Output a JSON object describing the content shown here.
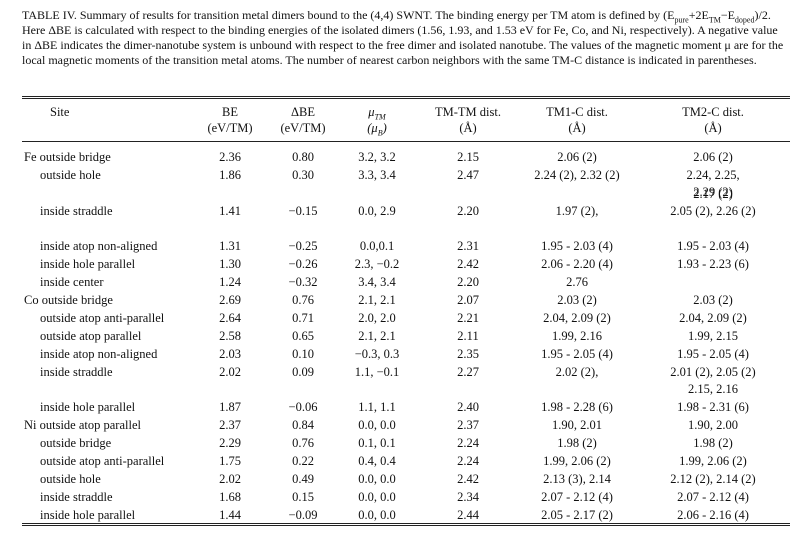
{
  "caption": {
    "lead": "TABLE IV. Summary of results for transition metal dimers bound to the (4,4) SWNT. The binding energy per TM atom is defined by (E",
    "sub_pure": "pure",
    "mid1": "+2E",
    "sub_tm": "TM",
    "mid2": "−E",
    "sub_doped": "doped",
    "tail": ")/2. Here ΔBE is calculated with respect to the binding energies of the isolated dimers (1.56, 1.93, and 1.53 eV for Fe, Co, and Ni, respectively). A negative value in ΔBE indicates the dimer-nanotube system is unbound with respect to the free dimer and isolated nanotube. The values of the magnetic moment μ are for the local magnetic moments of the transition metal atoms. The number of nearest carbon neighbors with the same TM-C distance is indicated in parentheses."
  },
  "headers": {
    "site": "Site",
    "be": "BE",
    "be_unit": "(eV/TM)",
    "dbe": "ΔBE",
    "dbe_unit": "(eV/TM)",
    "mu": "μ",
    "mu_sub": "TM",
    "mu_unit_open": "(μ",
    "mu_unit_sub": "B",
    "mu_unit_close": ")",
    "tmtm": "TM-TM dist.",
    "tmtm_unit": "(Å)",
    "tm1": "TM1-C dist.",
    "tm1_unit": "(Å)",
    "tm2": "TM2-C dist.",
    "tm2_unit": "(Å)"
  },
  "rows": [
    {
      "site": "Fe outside bridge",
      "indent": false,
      "be": "2.36",
      "dbe": "0.80",
      "mu": "3.2, 3.2",
      "tmtm": "2.15",
      "tm1": [
        "2.06 (2)"
      ],
      "tm2": [
        "2.06 (2)"
      ]
    },
    {
      "site": "outside hole",
      "indent": true,
      "be": "1.86",
      "dbe": "0.30",
      "mu": "3.3, 3.4",
      "tmtm": "2.47",
      "tm1": [
        "2.24 (2), 2.32 (2)"
      ],
      "tm2": [
        "2.24, 2.25,",
        "2.29 (2)"
      ]
    },
    {
      "site": "inside straddle",
      "indent": true,
      "be": "1.41",
      "dbe": "−0.15",
      "mu": "0.0, 2.9",
      "tmtm": "2.20",
      "tm1": [
        "1.97 (2),"
      ],
      "tm2": [
        "2.17 (2)",
        "2.05 (2), 2.26 (2)"
      ]
    },
    {
      "site": "inside atop non-aligned",
      "indent": true,
      "be": "1.31",
      "dbe": "−0.25",
      "mu": "0.0,0.1",
      "tmtm": "2.31",
      "tm1": [
        "1.95 - 2.03 (4)"
      ],
      "tm2": [
        "1.95 - 2.03 (4)"
      ]
    },
    {
      "site": "inside hole parallel",
      "indent": true,
      "be": "1.30",
      "dbe": "−0.26",
      "mu": "2.3, −0.2",
      "tmtm": "2.42",
      "tm1": [
        "2.06 - 2.20 (4)"
      ],
      "tm2": [
        "1.93 - 2.23 (6)"
      ]
    },
    {
      "site": "inside center",
      "indent": true,
      "be": "1.24",
      "dbe": "−0.32",
      "mu": "3.4, 3.4",
      "tmtm": "2.20",
      "tm1": [
        "2.76"
      ],
      "tm2": [
        ""
      ]
    },
    {
      "site": "Co outside bridge",
      "indent": false,
      "be": "2.69",
      "dbe": "0.76",
      "mu": "2.1, 2.1",
      "tmtm": "2.07",
      "tm1": [
        "2.03 (2)"
      ],
      "tm2": [
        "2.03 (2)"
      ]
    },
    {
      "site": "outside atop anti-parallel",
      "indent": true,
      "be": "2.64",
      "dbe": "0.71",
      "mu": "2.0, 2.0",
      "tmtm": "2.21",
      "tm1": [
        "2.04, 2.09 (2)"
      ],
      "tm2": [
        "2.04, 2.09 (2)"
      ]
    },
    {
      "site": "outside atop parallel",
      "indent": true,
      "be": "2.58",
      "dbe": "0.65",
      "mu": "2.1, 2.1",
      "tmtm": "2.11",
      "tm1": [
        "1.99, 2.16"
      ],
      "tm2": [
        "1.99, 2.15"
      ]
    },
    {
      "site": "inside atop non-aligned",
      "indent": true,
      "be": "2.03",
      "dbe": "0.10",
      "mu": "−0.3, 0.3",
      "tmtm": "2.35",
      "tm1": [
        "1.95 - 2.05 (4)"
      ],
      "tm2": [
        "1.95 - 2.05 (4)"
      ]
    },
    {
      "site": "inside straddle",
      "indent": true,
      "be": "2.02",
      "dbe": "0.09",
      "mu": "1.1, −0.1",
      "tmtm": "2.27",
      "tm1": [
        "2.02 (2),"
      ],
      "tm2": [
        "2.01 (2), 2.05 (2)",
        "2.15, 2.16"
      ]
    },
    {
      "site": "inside hole parallel",
      "indent": true,
      "be": "1.87",
      "dbe": "−0.06",
      "mu": "1.1, 1.1",
      "tmtm": "2.40",
      "tm1": [
        "1.98 - 2.28 (6)"
      ],
      "tm2": [
        "1.98 - 2.31 (6)"
      ]
    },
    {
      "site": "Ni outside atop parallel",
      "indent": false,
      "be": "2.37",
      "dbe": "0.84",
      "mu": "0.0, 0.0",
      "tmtm": "2.37",
      "tm1": [
        "1.90, 2.01"
      ],
      "tm2": [
        "1.90, 2.00"
      ]
    },
    {
      "site": "outside bridge",
      "indent": true,
      "be": "2.29",
      "dbe": "0.76",
      "mu": "0.1, 0.1",
      "tmtm": "2.24",
      "tm1": [
        "1.98 (2)"
      ],
      "tm2": [
        "1.98 (2)"
      ]
    },
    {
      "site": "outside atop anti-parallel",
      "indent": true,
      "be": "1.75",
      "dbe": "0.22",
      "mu": "0.4, 0.4",
      "tmtm": "2.24",
      "tm1": [
        "1.99, 2.06 (2)"
      ],
      "tm2": [
        "1.99, 2.06 (2)"
      ]
    },
    {
      "site": "outside hole",
      "indent": true,
      "be": "2.02",
      "dbe": "0.49",
      "mu": "0.0, 0.0",
      "tmtm": "2.42",
      "tm1": [
        "2.13 (3), 2.14"
      ],
      "tm2": [
        "2.12 (2), 2.14 (2)"
      ]
    },
    {
      "site": "inside straddle",
      "indent": true,
      "be": "1.68",
      "dbe": "0.15",
      "mu": "0.0, 0.0",
      "tmtm": "2.34",
      "tm1": [
        "2.07 - 2.12 (4)"
      ],
      "tm2": [
        "2.07 - 2.12 (4)"
      ]
    },
    {
      "site": "inside hole parallel",
      "indent": true,
      "be": "1.44",
      "dbe": "−0.09",
      "mu": "0.0, 0.0",
      "tmtm": "2.44",
      "tm1": [
        "2.05 - 2.17 (2)"
      ],
      "tm2": [
        "2.06 - 2.16 (4)"
      ]
    }
  ]
}
